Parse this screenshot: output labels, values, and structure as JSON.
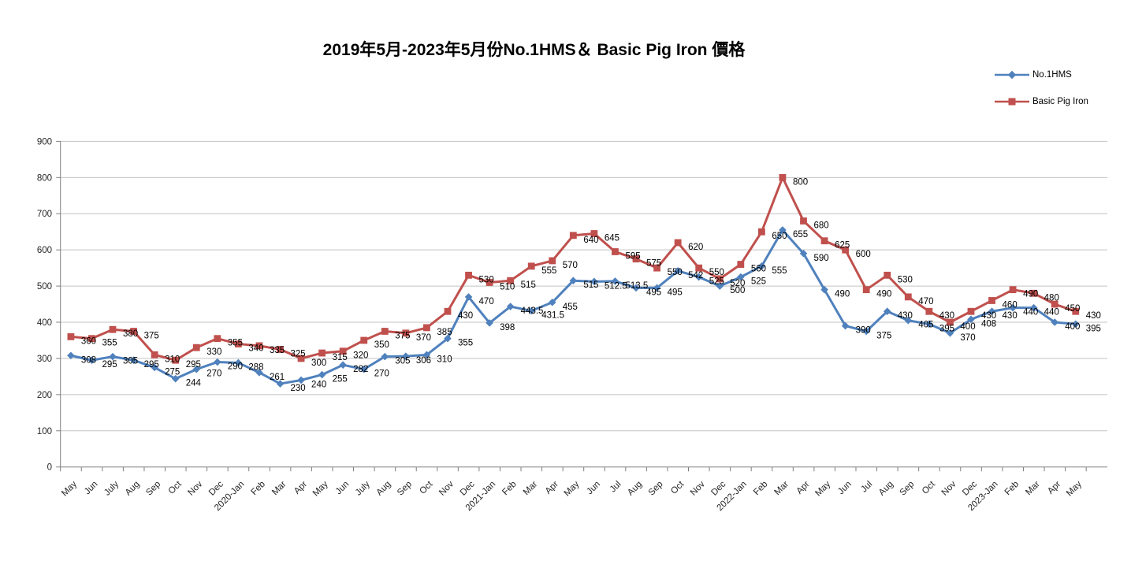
{
  "title": "2019年5月-2023年5月份No.1HMS＆ Basic Pig Iron 價格",
  "colors": {
    "hms_blue": "#4F81BD",
    "pig_iron_red": "#C0504D",
    "gridline": "#C3C3C3",
    "axis": "#7F7F7F",
    "label_text": "#000000",
    "tick_text": "#262626"
  },
  "legend": {
    "position": "top-right",
    "items": [
      {
        "label": "No.1HMS",
        "color": "#4F81BD",
        "marker": "diamond"
      },
      {
        "label": "Basic Pig Iron",
        "color": "#C0504D",
        "marker": "square"
      }
    ]
  },
  "chart_data": {
    "type": "line",
    "title": "2019年5月-2023年5月份No.1HMS＆ Basic Pig Iron 價格",
    "xlabel": "",
    "ylabel": "",
    "ylim": [
      0,
      900
    ],
    "ytick_step": 100,
    "grid": "horizontal",
    "legend_position": "top-right",
    "data_labels": "right",
    "categories": [
      "May",
      "Jun",
      "July",
      "Aug",
      "Sep",
      "Oct",
      "Nov",
      "Dec",
      "2020-Jan",
      "Feb",
      "Mar",
      "Apr",
      "May",
      "Jun",
      "July",
      "Aug",
      "Sep",
      "Oct",
      "Nov",
      "Dec",
      "2021-Jan",
      "Feb",
      "Mar",
      "Apr",
      "May",
      "Jun",
      "Jul",
      "Aug",
      "Sep",
      "Oct",
      "Nov",
      "Dec",
      "2022-Jan",
      "Feb",
      "Mar",
      "Apr",
      "May",
      "Jun",
      "Jul",
      "Aug",
      "Sep",
      "Oct",
      "Nov",
      "Dec",
      "2023-Jan",
      "Feb",
      "Mar",
      "Apr",
      "May"
    ],
    "series": [
      {
        "name": "No.1HMS",
        "color": "#4F81BD",
        "marker": "diamond",
        "values": [
          308,
          295,
          305,
          295,
          275,
          244,
          270,
          290,
          288,
          261,
          230,
          240,
          255,
          282,
          270,
          305,
          306,
          310,
          355,
          470,
          398,
          443.5,
          431.5,
          455,
          515,
          512.5,
          513.5,
          495,
          495,
          542,
          525,
          500,
          525,
          555,
          655,
          590,
          490,
          390,
          375,
          430,
          405,
          395,
          370,
          408,
          430,
          440,
          440,
          400,
          395
        ]
      },
      {
        "name": "Basic Pig Iron",
        "color": "#C0504D",
        "marker": "square",
        "values": [
          360,
          355,
          380,
          375,
          310,
          295,
          330,
          355,
          340,
          335,
          325,
          300,
          315,
          320,
          350,
          375,
          370,
          385,
          430,
          530,
          510,
          515,
          555,
          570,
          640,
          645,
          595,
          575,
          550,
          620,
          550,
          520,
          560,
          650,
          800,
          680,
          625,
          600,
          490,
          530,
          470,
          430,
          400,
          430,
          460,
          490,
          480,
          450,
          430
        ]
      }
    ]
  }
}
